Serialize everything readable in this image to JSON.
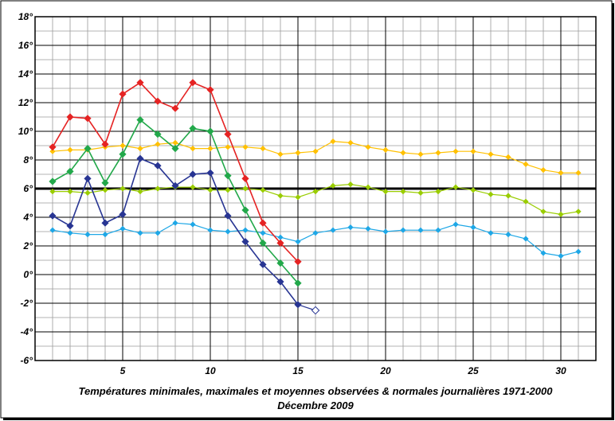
{
  "chart_data": {
    "type": "line",
    "title": "Températures minimales, maximales et moyennes observées & normales journalières 1971-2000",
    "subtitle": "Décembre 2009",
    "xlabel": "",
    "ylabel": "",
    "xlim": [
      0,
      32
    ],
    "ylim": [
      -6,
      18
    ],
    "x_ticks": [
      5,
      10,
      15,
      20,
      25,
      30
    ],
    "y_ticks": [
      {
        "value": -6,
        "label": "-6°"
      },
      {
        "value": -4,
        "label": "-4°"
      },
      {
        "value": -2,
        "label": "-2°"
      },
      {
        "value": 0,
        "label": "0°"
      },
      {
        "value": 2,
        "label": "2°"
      },
      {
        "value": 4,
        "label": "4°"
      },
      {
        "value": 6,
        "label": "6°"
      },
      {
        "value": 8,
        "label": "8°"
      },
      {
        "value": 10,
        "label": "10°"
      },
      {
        "value": 12,
        "label": "12°"
      },
      {
        "value": 14,
        "label": "14°"
      },
      {
        "value": 16,
        "label": "16°"
      },
      {
        "value": 18,
        "label": "18°"
      }
    ],
    "grid": true,
    "reference_line": {
      "y": 6,
      "color": "#000000"
    },
    "series": [
      {
        "color": "#ffc000",
        "style": "normal",
        "x": [
          1,
          2,
          3,
          4,
          5,
          6,
          7,
          8,
          9,
          10,
          11,
          12,
          13,
          14,
          15,
          16,
          17,
          18,
          19,
          20,
          21,
          22,
          23,
          24,
          25,
          26,
          27,
          28,
          29,
          30,
          31
        ],
        "y": [
          8.6,
          8.7,
          8.7,
          8.9,
          9.0,
          8.8,
          9.1,
          9.2,
          8.8,
          8.8,
          8.9,
          8.9,
          8.8,
          8.4,
          8.5,
          8.6,
          9.3,
          9.2,
          8.9,
          8.7,
          8.5,
          8.4,
          8.5,
          8.6,
          8.6,
          8.4,
          8.2,
          7.7,
          7.3,
          7.1,
          7.1
        ]
      },
      {
        "color": "#99cc00",
        "style": "normal",
        "x": [
          1,
          2,
          3,
          4,
          5,
          6,
          7,
          8,
          9,
          10,
          11,
          12,
          13,
          14,
          15,
          16,
          17,
          18,
          19,
          20,
          21,
          22,
          23,
          24,
          25,
          26,
          27,
          28,
          29,
          30,
          31
        ],
        "y": [
          5.8,
          5.8,
          5.7,
          5.9,
          6.0,
          5.8,
          6.0,
          6.1,
          6.1,
          5.9,
          5.9,
          6.0,
          5.9,
          5.5,
          5.4,
          5.8,
          6.2,
          6.3,
          6.1,
          5.8,
          5.8,
          5.7,
          5.8,
          6.1,
          5.9,
          5.6,
          5.5,
          5.1,
          4.4,
          4.2,
          4.4
        ]
      },
      {
        "color": "#1ea7e6",
        "style": "normal",
        "x": [
          1,
          2,
          3,
          4,
          5,
          6,
          7,
          8,
          9,
          10,
          11,
          12,
          13,
          14,
          15,
          16,
          17,
          18,
          19,
          20,
          21,
          22,
          23,
          24,
          25,
          26,
          27,
          28,
          29,
          30,
          31
        ],
        "y": [
          3.1,
          2.9,
          2.8,
          2.8,
          3.2,
          2.9,
          2.9,
          3.6,
          3.5,
          3.1,
          3.0,
          3.1,
          2.9,
          2.6,
          2.3,
          2.9,
          3.1,
          3.3,
          3.2,
          3.0,
          3.1,
          3.1,
          3.1,
          3.5,
          3.3,
          2.9,
          2.8,
          2.5,
          1.5,
          1.3,
          1.6
        ]
      },
      {
        "color": "#e52323",
        "style": "observed",
        "x": [
          1,
          2,
          3,
          4,
          5,
          6,
          7,
          8,
          9,
          10,
          11,
          12,
          13,
          14,
          15
        ],
        "y": [
          8.9,
          11.0,
          10.9,
          9.1,
          12.6,
          13.4,
          12.1,
          11.6,
          13.4,
          12.9,
          9.8,
          6.7,
          3.6,
          2.2,
          0.9
        ]
      },
      {
        "color": "#22a84a",
        "style": "observed",
        "x": [
          1,
          2,
          3,
          4,
          5,
          6,
          7,
          8,
          9,
          10,
          11,
          12,
          13,
          14,
          15
        ],
        "y": [
          6.5,
          7.2,
          8.8,
          6.4,
          8.4,
          10.8,
          9.8,
          8.8,
          10.2,
          10.0,
          6.9,
          4.5,
          2.2,
          0.8,
          -0.6
        ]
      },
      {
        "color": "#283593",
        "style": "observed",
        "x": [
          1,
          2,
          3,
          4,
          5,
          6,
          7,
          8,
          9,
          10,
          11,
          12,
          13,
          14,
          15
        ],
        "y": [
          4.1,
          3.4,
          6.7,
          3.6,
          4.2,
          8.1,
          7.6,
          6.2,
          7.0,
          7.1,
          4.1,
          2.3,
          0.7,
          -0.5,
          -2.1
        ]
      },
      {
        "color": "#283593",
        "style": "open-marker",
        "x": [
          15,
          16
        ],
        "y": [
          -2.1,
          -2.5
        ]
      }
    ]
  }
}
